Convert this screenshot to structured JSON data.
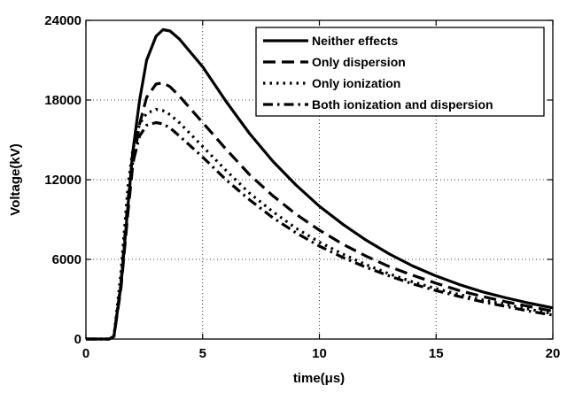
{
  "chart_data": {
    "type": "line",
    "title": "",
    "xlabel": "time(μs)",
    "ylabel": "Voltage(kV)",
    "xlim": [
      0,
      20
    ],
    "ylim": [
      0,
      24000
    ],
    "x_ticks": [
      "0",
      "5",
      "10",
      "15",
      "20"
    ],
    "y_ticks": [
      "0",
      "6000",
      "12000",
      "18000",
      "24000"
    ],
    "grid": true,
    "legend_position": "top-right",
    "series": [
      {
        "name": "Neither effects",
        "style": "solid",
        "color": "#000000",
        "points": [
          [
            0,
            0
          ],
          [
            1.0,
            0
          ],
          [
            1.2,
            200
          ],
          [
            1.5,
            4000
          ],
          [
            1.8,
            10000
          ],
          [
            2.0,
            14000
          ],
          [
            2.3,
            18000
          ],
          [
            2.6,
            21000
          ],
          [
            3.0,
            22800
          ],
          [
            3.3,
            23300
          ],
          [
            3.6,
            23200
          ],
          [
            4.0,
            22600
          ],
          [
            5.0,
            20500
          ],
          [
            6.0,
            17900
          ],
          [
            7.0,
            15500
          ],
          [
            8.0,
            13400
          ],
          [
            9.0,
            11600
          ],
          [
            10.0,
            10000
          ],
          [
            11.0,
            8650
          ],
          [
            12.0,
            7450
          ],
          [
            13.0,
            6400
          ],
          [
            14.0,
            5500
          ],
          [
            15.0,
            4750
          ],
          [
            16.0,
            4100
          ],
          [
            17.0,
            3550
          ],
          [
            18.0,
            3100
          ],
          [
            19.0,
            2700
          ],
          [
            20.0,
            2350
          ]
        ]
      },
      {
        "name": "Only dispersion",
        "style": "dashed",
        "color": "#000000",
        "points": [
          [
            0,
            0
          ],
          [
            1.0,
            0
          ],
          [
            1.2,
            200
          ],
          [
            1.5,
            3800
          ],
          [
            1.8,
            9500
          ],
          [
            2.0,
            13000
          ],
          [
            2.3,
            16200
          ],
          [
            2.6,
            18200
          ],
          [
            3.0,
            19200
          ],
          [
            3.3,
            19300
          ],
          [
            3.6,
            19000
          ],
          [
            4.0,
            18300
          ],
          [
            5.0,
            16300
          ],
          [
            6.0,
            14300
          ],
          [
            7.0,
            12400
          ],
          [
            8.0,
            10800
          ],
          [
            9.0,
            9400
          ],
          [
            10.0,
            8200
          ],
          [
            11.0,
            7150
          ],
          [
            12.0,
            6250
          ],
          [
            13.0,
            5450
          ],
          [
            14.0,
            4800
          ],
          [
            15.0,
            4200
          ],
          [
            16.0,
            3650
          ],
          [
            17.0,
            3200
          ],
          [
            18.0,
            2800
          ],
          [
            19.0,
            2450
          ],
          [
            20.0,
            2100
          ]
        ]
      },
      {
        "name": "Only ionization",
        "style": "dotted",
        "color": "#000000",
        "points": [
          [
            0,
            0
          ],
          [
            1.0,
            0
          ],
          [
            1.2,
            200
          ],
          [
            1.5,
            5000
          ],
          [
            1.8,
            11500
          ],
          [
            2.0,
            14200
          ],
          [
            2.3,
            16200
          ],
          [
            2.6,
            17000
          ],
          [
            3.0,
            17300
          ],
          [
            3.3,
            17200
          ],
          [
            3.6,
            16900
          ],
          [
            4.0,
            16300
          ],
          [
            5.0,
            14500
          ],
          [
            6.0,
            12700
          ],
          [
            7.0,
            11000
          ],
          [
            8.0,
            9600
          ],
          [
            9.0,
            8350
          ],
          [
            10.0,
            7300
          ],
          [
            11.0,
            6400
          ],
          [
            12.0,
            5600
          ],
          [
            13.0,
            4900
          ],
          [
            14.0,
            4300
          ],
          [
            15.0,
            3800
          ],
          [
            16.0,
            3350
          ],
          [
            17.0,
            2950
          ],
          [
            18.0,
            2600
          ],
          [
            19.0,
            2250
          ],
          [
            20.0,
            1900
          ]
        ]
      },
      {
        "name": "Both ionization and dispersion",
        "style": "dashdot",
        "color": "#000000",
        "points": [
          [
            0,
            0
          ],
          [
            1.0,
            0
          ],
          [
            1.2,
            200
          ],
          [
            1.5,
            4200
          ],
          [
            1.8,
            10500
          ],
          [
            2.0,
            13200
          ],
          [
            2.3,
            15300
          ],
          [
            2.6,
            16100
          ],
          [
            3.0,
            16300
          ],
          [
            3.3,
            16200
          ],
          [
            3.6,
            15900
          ],
          [
            4.0,
            15300
          ],
          [
            5.0,
            13700
          ],
          [
            6.0,
            12000
          ],
          [
            7.0,
            10500
          ],
          [
            8.0,
            9150
          ],
          [
            9.0,
            8000
          ],
          [
            10.0,
            7000
          ],
          [
            11.0,
            6150
          ],
          [
            12.0,
            5400
          ],
          [
            13.0,
            4750
          ],
          [
            14.0,
            4150
          ],
          [
            15.0,
            3650
          ],
          [
            16.0,
            3200
          ],
          [
            17.0,
            2800
          ],
          [
            18.0,
            2450
          ],
          [
            19.0,
            2100
          ],
          [
            20.0,
            1800
          ]
        ]
      }
    ]
  }
}
